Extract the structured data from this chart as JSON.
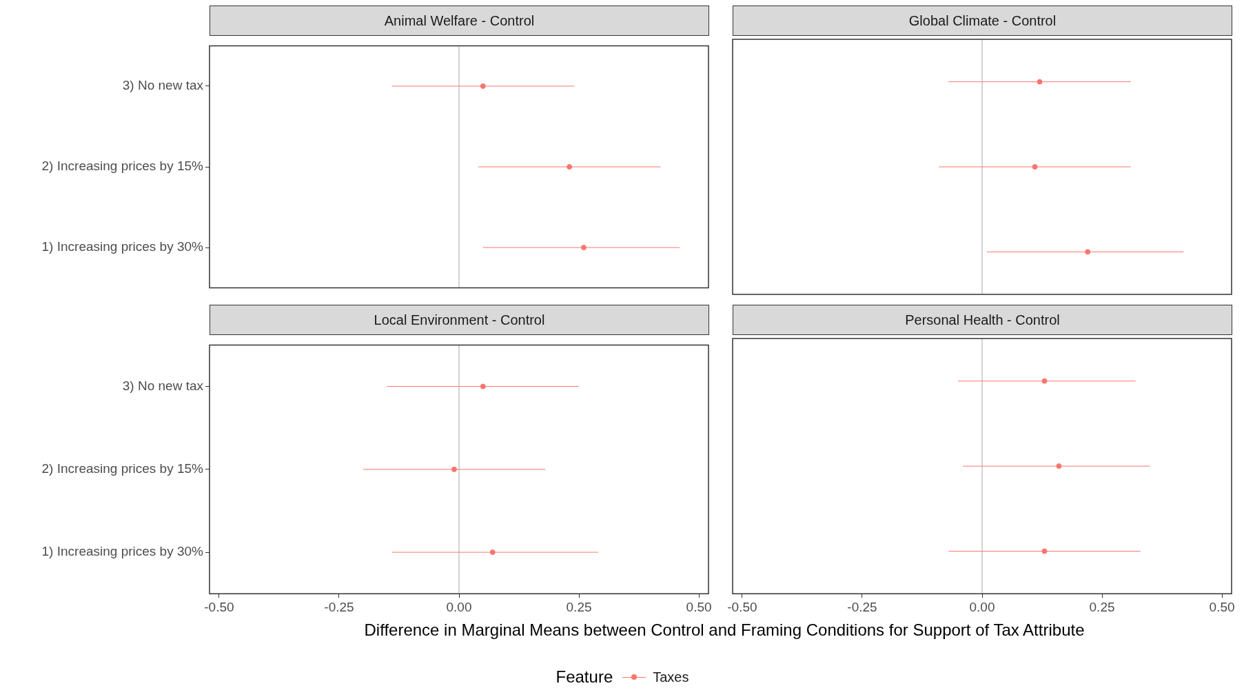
{
  "chart_data": [
    {
      "type": "scatter",
      "title": "Animal Welfare - Control",
      "orientation": "horizontal",
      "categories": [
        "3) No new tax",
        "2) Increasing prices by 15%",
        "1) Increasing prices by 30%"
      ],
      "xlim": [
        -0.52,
        0.52
      ],
      "tick_labels": "y",
      "marker": "circle",
      "grid": false,
      "ref_lines": [
        {
          "axis": "x",
          "value": 0,
          "color": "#a6a6a6"
        }
      ],
      "series": [
        {
          "color": "#f8766d",
          "values": [
            0.05,
            0.23,
            0.26
          ],
          "errors": [
            [
              -0.14,
              0.24
            ],
            [
              0.04,
              0.42
            ],
            [
              0.05,
              0.46
            ]
          ]
        }
      ]
    },
    {
      "type": "scatter",
      "title": "Global Climate - Control",
      "orientation": "horizontal",
      "categories": [
        null,
        null,
        null
      ],
      "xlim": [
        -0.52,
        0.52
      ],
      "tick_labels": false,
      "marker": "circle",
      "grid": false,
      "ref_lines": [
        {
          "axis": "x",
          "value": 0,
          "color": "#a6a6a6"
        }
      ],
      "series": [
        {
          "color": "#f8766d",
          "values": [
            0.12,
            0.11,
            0.22
          ],
          "errors": [
            [
              -0.07,
              0.31
            ],
            [
              -0.09,
              0.31
            ],
            [
              0.01,
              0.42
            ]
          ]
        }
      ]
    },
    {
      "type": "scatter",
      "title": "Local Environment - Control",
      "orientation": "horizontal",
      "categories": [
        "3) No new tax",
        "2) Increasing prices by 15%",
        "1) Increasing prices by 30%"
      ],
      "xlim": [
        -0.52,
        0.52
      ],
      "xticks": [
        {
          "value": -0.5,
          "label": "-0.50"
        },
        {
          "value": -0.25,
          "label": "-0.25"
        },
        {
          "value": 0,
          "label": "0.00"
        },
        {
          "value": 0.25,
          "label": "0.25"
        },
        {
          "value": 0.5,
          "label": "0.50"
        }
      ],
      "xlabel": "Difference in Marginal Means between Control and Framing Conditions for Support of Tax Attribute",
      "legend": "bottom",
      "legend_title": "Feature",
      "marker": "circle",
      "grid": false,
      "ref_lines": [
        {
          "axis": "x",
          "value": 0,
          "color": "#a6a6a6"
        }
      ],
      "series": [
        {
          "name": "Taxes",
          "color": "#f8766d",
          "values": [
            0.05,
            -0.01,
            0.07
          ],
          "errors": [
            [
              -0.15,
              0.25
            ],
            [
              -0.2,
              0.18
            ],
            [
              -0.14,
              0.29
            ]
          ]
        }
      ]
    },
    {
      "type": "scatter",
      "title": "Personal Health - Control",
      "orientation": "horizontal",
      "categories": [
        null,
        null,
        null
      ],
      "xlim": [
        -0.52,
        0.52
      ],
      "xticks": [
        {
          "value": -0.5,
          "label": "-0.50"
        },
        {
          "value": -0.25,
          "label": "-0.25"
        },
        {
          "value": 0,
          "label": "0.00"
        },
        {
          "value": 0.25,
          "label": "0.25"
        },
        {
          "value": 0.5,
          "label": "0.50"
        }
      ],
      "tick_labels": "x",
      "marker": "circle",
      "grid": false,
      "ref_lines": [
        {
          "axis": "x",
          "value": 0,
          "color": "#a6a6a6"
        }
      ],
      "series": [
        {
          "color": "#f8766d",
          "values": [
            0.13,
            0.16,
            0.13
          ],
          "errors": [
            [
              -0.05,
              0.32
            ],
            [
              -0.04,
              0.35
            ],
            [
              -0.07,
              0.33
            ]
          ]
        }
      ]
    }
  ]
}
